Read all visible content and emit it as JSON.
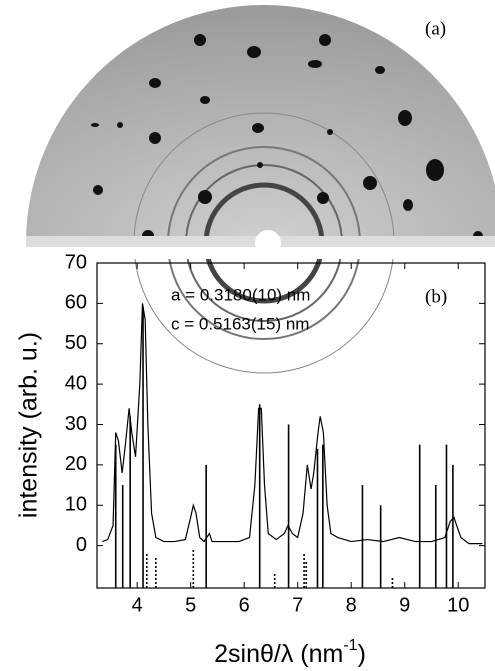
{
  "chart_data": {
    "type": "line",
    "panel_a_label": "(a)",
    "panel_b_label": "(b)",
    "annotations": [
      "a = 0.3180(10) nm",
      "c = 0.5163(15) nm"
    ],
    "y_label": "intensity (arb. u.)",
    "x_label": "2sinθ/λ (nm",
    "x_label_sup": "-1",
    "x_label_end": ")",
    "xlim": [
      3.25,
      10.5
    ],
    "xticks": [
      4,
      5,
      6,
      7,
      8,
      9,
      10
    ],
    "ylim": [
      -10.5,
      70
    ],
    "yticks": [
      0,
      10,
      20,
      30,
      40,
      50,
      60,
      70
    ],
    "series": [
      {
        "color": "#000",
        "x": [
          3.35,
          3.45,
          3.55,
          3.6,
          3.65,
          3.72,
          3.78,
          3.85,
          3.9,
          3.97,
          4.05,
          4.1,
          4.15,
          4.2,
          4.27,
          4.35,
          4.5,
          4.7,
          4.9,
          5.0,
          5.05,
          5.1,
          5.17,
          5.25,
          5.35,
          5.4,
          5.6,
          5.9,
          6.1,
          6.2,
          6.27,
          6.32,
          6.38,
          6.45,
          6.6,
          6.75,
          6.82,
          6.9,
          7.0,
          7.1,
          7.18,
          7.25,
          7.3,
          7.38,
          7.42,
          7.48,
          7.55,
          7.62,
          7.75,
          8.0,
          8.3,
          8.6,
          8.9,
          9.2,
          9.5,
          9.75,
          9.85,
          9.92,
          9.97,
          10.05,
          10.2,
          10.45
        ],
        "values": [
          1,
          1.5,
          5,
          28,
          26,
          18,
          25,
          34,
          28,
          22,
          40,
          60,
          56,
          30,
          8,
          2,
          1,
          1,
          1.5,
          7,
          10,
          8,
          2,
          1,
          3,
          1,
          1,
          1,
          2,
          15,
          34,
          34,
          15,
          3,
          1.5,
          3,
          5,
          3,
          2,
          8,
          20,
          14,
          18,
          28,
          32,
          28,
          10,
          3,
          2,
          1,
          1.5,
          1,
          2,
          1,
          1,
          2,
          6,
          7,
          5,
          2,
          0.5,
          0.5
        ]
      }
    ],
    "sticks": {
      "x": [
        3.6,
        3.73,
        3.87,
        4.11,
        5.29,
        6.29,
        6.83,
        7.37,
        7.47,
        8.21,
        8.55,
        9.28,
        9.58,
        9.78,
        9.9
      ],
      "values": [
        25,
        15,
        32,
        59,
        20,
        35,
        30,
        24,
        25,
        15,
        10,
        25,
        15,
        25,
        20
      ]
    },
    "dotted_sticks": {
      "x": [
        4.18,
        4.35,
        5.05,
        6.57,
        7.12,
        7.16,
        8.77
      ],
      "values": [
        -2,
        -3,
        -1,
        -7,
        -2,
        -4,
        -8
      ]
    }
  }
}
